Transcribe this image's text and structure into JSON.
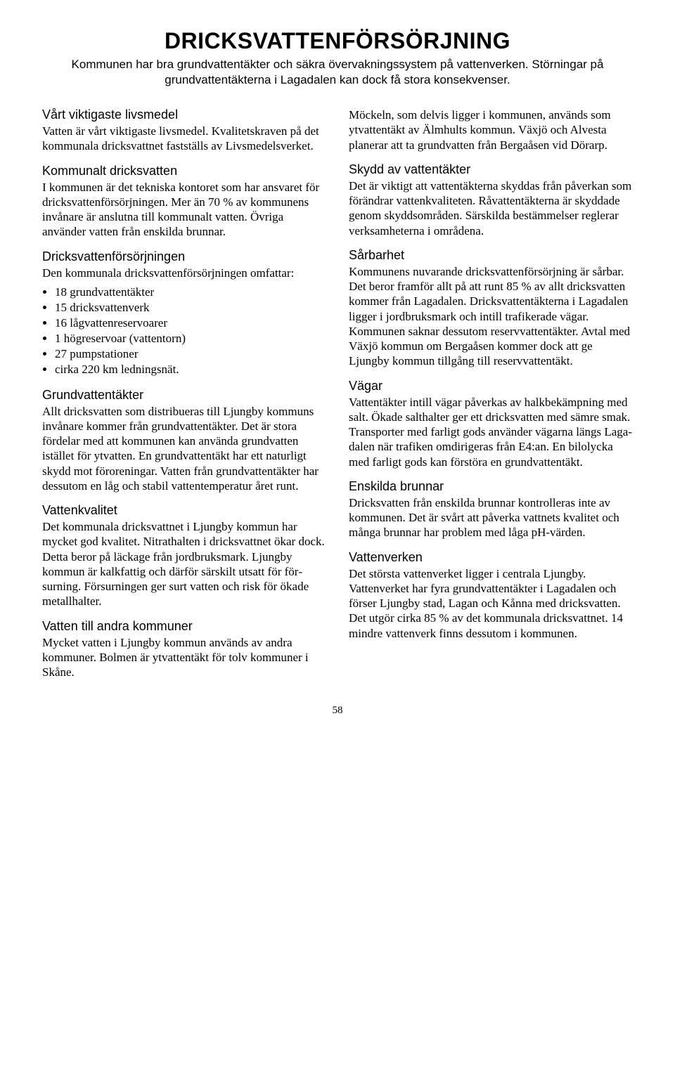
{
  "title": "DRICKSVATTENFÖRSÖRJNING",
  "subtitle": "Kommunen har bra grundvattentäkter och säkra övervakningssystem på vattenverken. Störningar på grundvattentäkterna i Lagadalen kan dock få stora konsekvenser.",
  "pageNumber": "58",
  "left": {
    "s1": {
      "h": "Vårt viktigaste livsmedel",
      "p": "Vatten är vårt viktigaste livsmedel. Kvalitets­kraven på det kommunala dricksvattnet fast­ställs av Livsmedelsverket."
    },
    "s2": {
      "h": "Kommunalt dricksvatten",
      "p": "I kommunen är det tekniska kontoret som har ansvaret för dricksvattenförsörjningen. Mer än 70 % av kommunens invånare är anslutna till kommunalt vatten. Övriga använder vatten från enskilda brunnar."
    },
    "s3": {
      "h": "Dricksvattenförsörjningen",
      "intro": "Den kommunala dricksvattenförsörjningen omfattar:",
      "b1": "18 grundvattentäkter",
      "b2": "15 dricksvattenverk",
      "b3": "16 lågvattenreservoarer",
      "b4": "1 högreservoar (vattentorn)",
      "b5": "27 pumpstationer",
      "b6": "cirka 220 km ledningsnät."
    },
    "s4": {
      "h": "Grundvattentäkter",
      "p": "Allt dricksvatten som distribueras till Ljungby kommuns invånare kommer från grundvatten­täkter. Det är stora fördelar med att kommunen kan använda grundvatten istället för ytvatten. En grundvattentäkt har ett naturligt skydd mot föroreningar. Vatten från grundvattentäkter har dessutom en låg och stabil vattentemperatur året runt."
    },
    "s5": {
      "h": "Vattenkvalitet",
      "p": "Det kommunala dricksvattnet i Ljungby kommun har mycket god kvalitet. Nitrathalten i dricksvattnet ökar dock. Detta beror på läckage från jordbruksmark. Ljungby kommun är kalkfattig och därför särskilt utsatt för för­surning. Försurningen ger surt vatten och risk för ökade metallhalter."
    },
    "s6": {
      "h": "Vatten till andra kommuner",
      "p": "Mycket vatten i Ljungby kommun används av andra kommuner. Bolmen är ytvattentäkt för tolv kommuner i Skåne."
    }
  },
  "right": {
    "s0": {
      "p": "Möckeln, som delvis ligger i kommunen, används som ytvattentäkt av Älmhults kommun. Växjö och Alvesta planerar att ta grundvatten från Bergaåsen vid Dörarp."
    },
    "s1": {
      "h": "Skydd av vattentäkter",
      "p": "Det är viktigt att vattentäkterna skyddas från påverkan som förändrar vattenkvaliteten. Rå­vattentäkterna är skyddade genom skydds­områden. Särskilda bestämmelser reglerar verksamheterna i områdena."
    },
    "s2": {
      "h": "Sårbarhet",
      "p": "Kommunens nuvarande dricksvattenförsörj­ning är sårbar. Det beror framför allt på att runt 85 % av allt dricksvatten kommer från Lagadalen. Dricksvattentäkterna i Lagadalen ligger i jordbruksmark och intill trafikerade vägar. Kommunen saknar dessutom reserv­vattentäkter. Avtal med Växjö kommun om Bergaåsen kommer dock att ge Ljungby kommun tillgång till reservvattentäkt."
    },
    "s3": {
      "h": "Vägar",
      "p": "Vattentäkter intill vägar påverkas av halk­bekämpning med salt. Ökade salthalter ger ett dricksvatten med sämre smak. Transporter med farligt gods använder vägarna längs Laga­dalen när trafiken omdirigeras från E4:an. En bilolycka med farligt gods kan förstöra en grundvattentäkt."
    },
    "s4": {
      "h": "Enskilda brunnar",
      "p": "Dricksvatten från enskilda brunnar kontrolle­ras inte av kommunen. Det är svårt att påverka vattnets kvalitet och många brunnar har problem med låga pH-värden."
    },
    "s5": {
      "h": "Vattenverken",
      "p": "Det största vattenverket ligger i centrala Ljungby. Vattenverket har fyra grundvatten­täkter i Lagadalen och förser Ljungby stad, Lagan och Kånna med dricksvatten. Det utgör cirka 85 % av det kommunala dricksvattnet. 14 mindre vattenverk finns dessutom i kommunen."
    }
  }
}
